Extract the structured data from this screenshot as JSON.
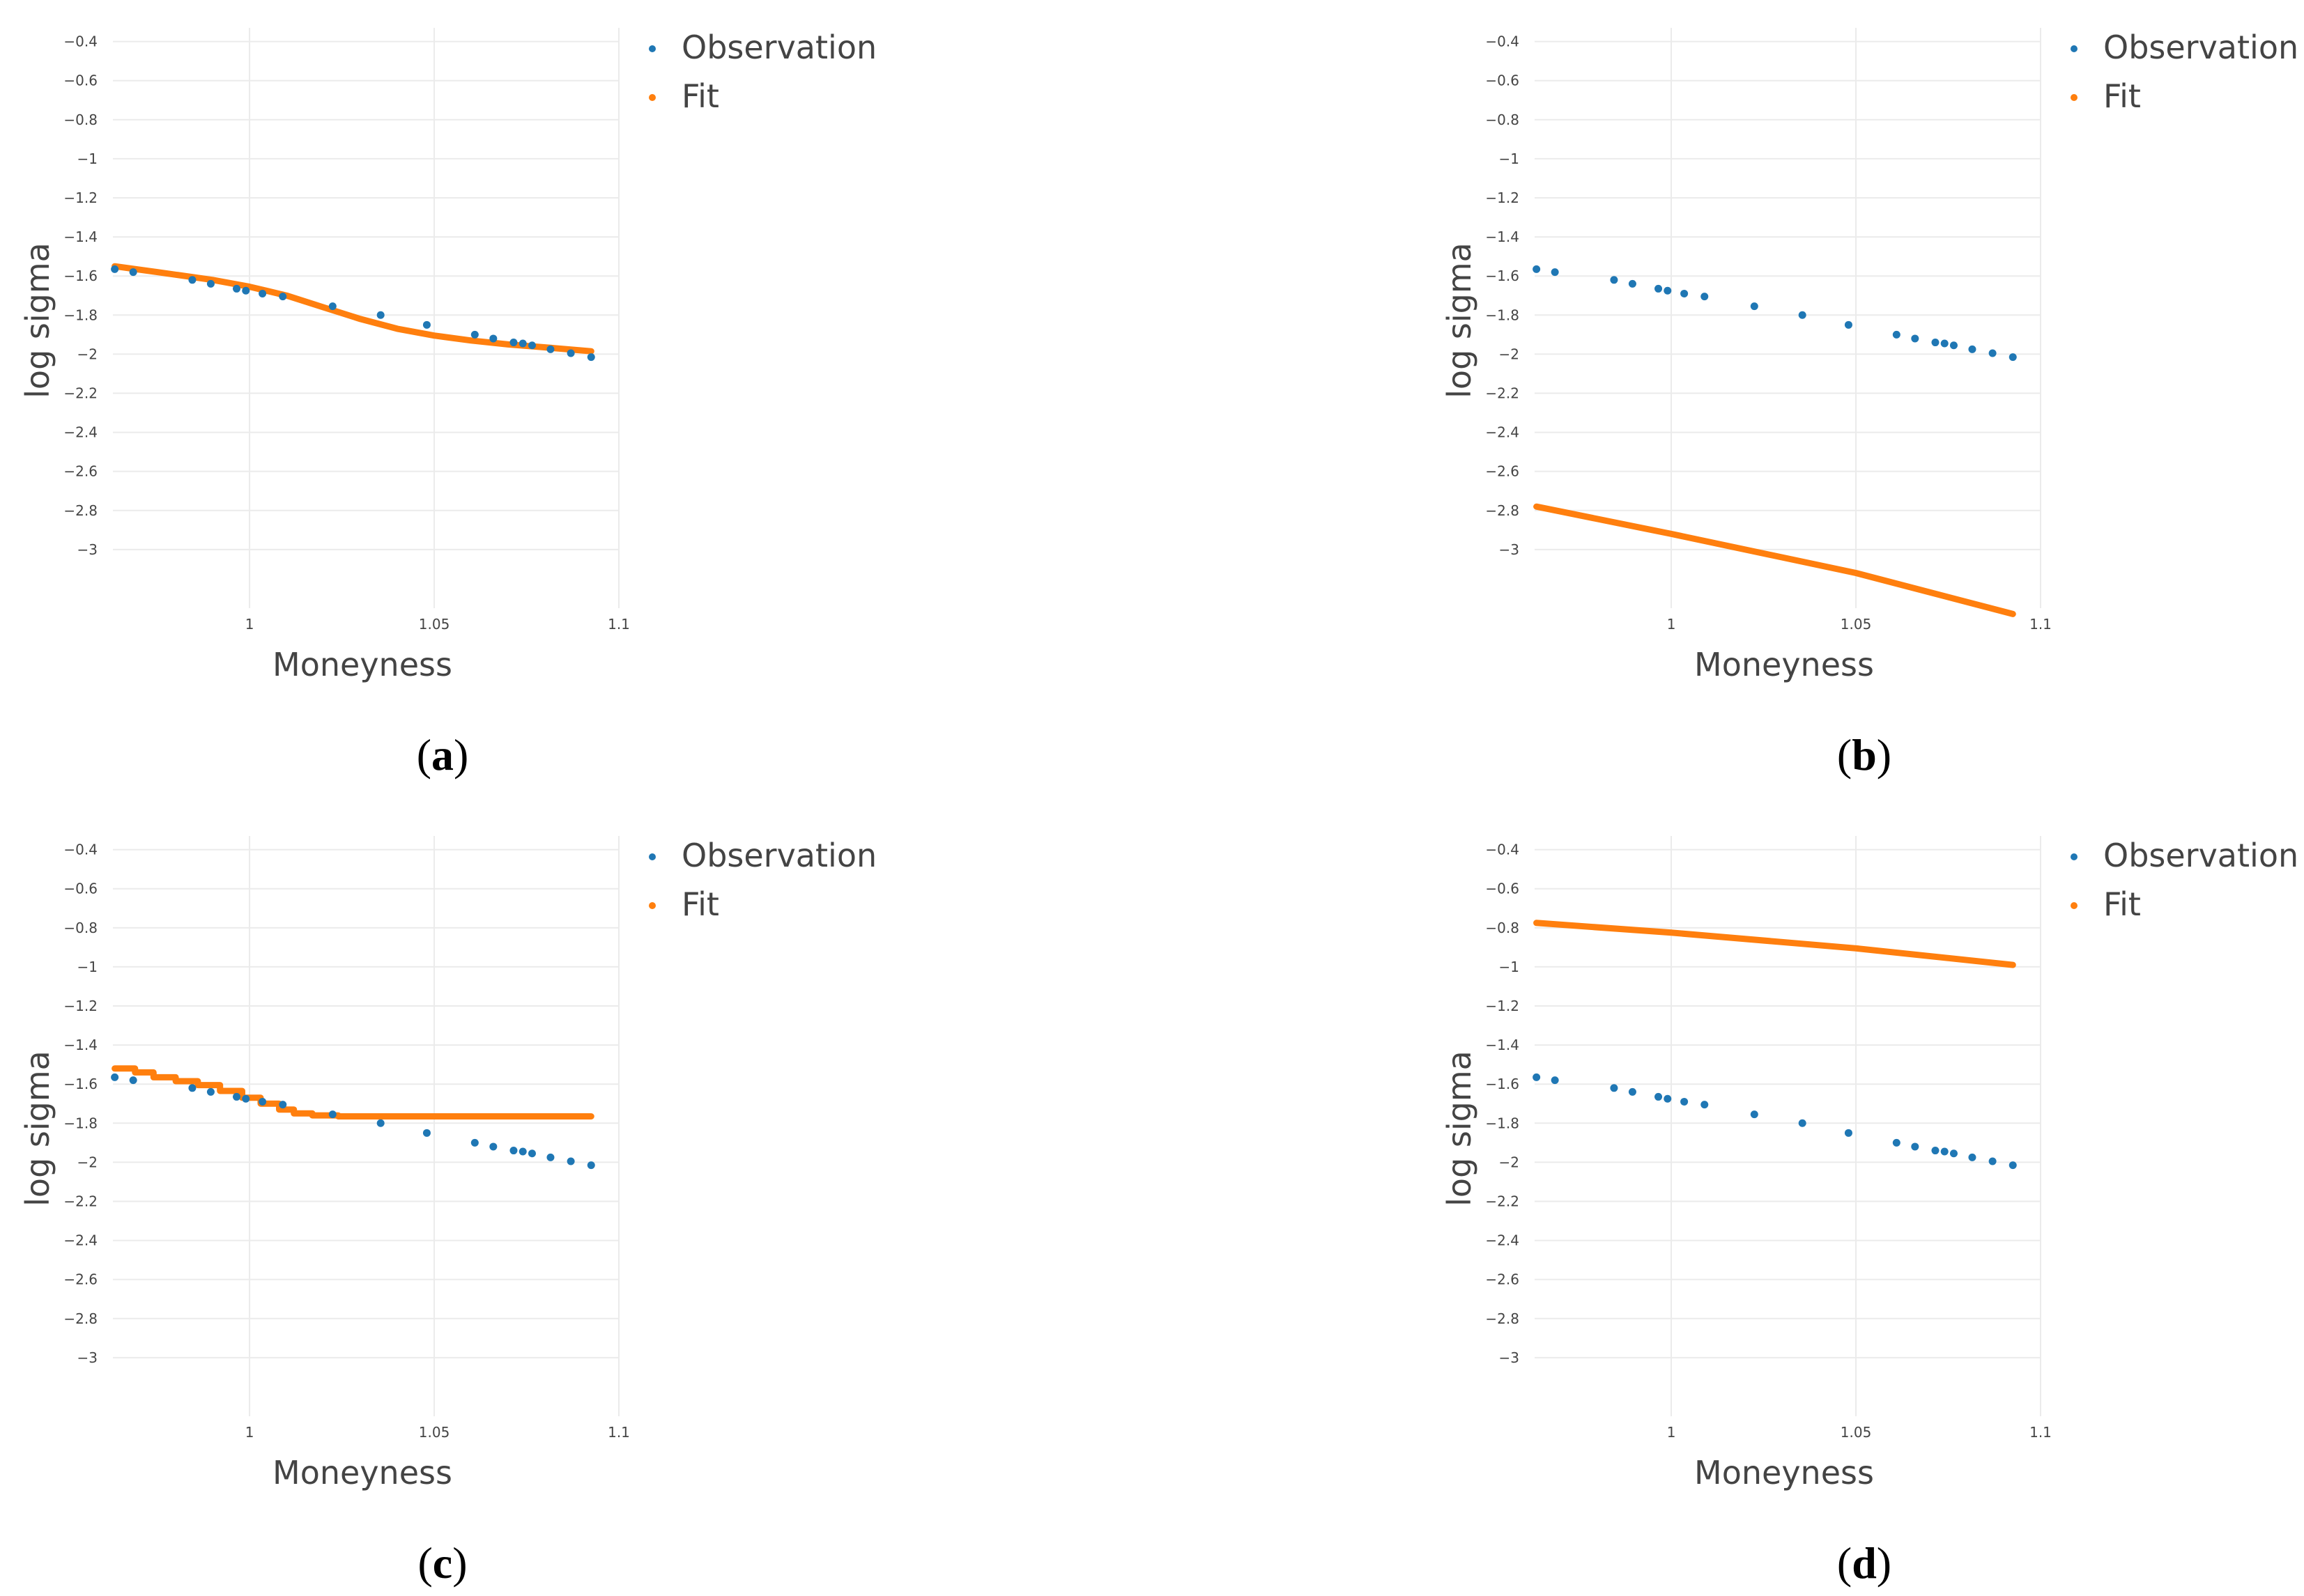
{
  "chart_data": [
    {
      "id": "a",
      "type": "scatter+line",
      "caption": "a",
      "xlabel": "Moneyness",
      "ylabel": "log sigma",
      "xlim": [
        0.963,
        1.1
      ],
      "ylim": [
        -3.3,
        -0.33
      ],
      "x_ticks": [
        1,
        1.05,
        1.1
      ],
      "x_tick_labels": [
        "1",
        "1.05",
        "1.1"
      ],
      "y_ticks": [
        -0.4,
        -0.6,
        -0.8,
        -1,
        -1.2,
        -1.4,
        -1.6,
        -1.8,
        -2,
        -2.2,
        -2.4,
        -2.6,
        -2.8,
        -3
      ],
      "y_tick_labels": [
        "−0.4",
        "−0.6",
        "−0.8",
        "−1",
        "−1.2",
        "−1.4",
        "−1.6",
        "−1.8",
        "−2",
        "−2.2",
        "−2.4",
        "−2.6",
        "−2.8",
        "−3"
      ],
      "grid": true,
      "legend": [
        "Observation",
        "Fit"
      ],
      "legend_position": "top-right",
      "series": [
        {
          "name": "Observation",
          "color": "#1f77b4",
          "x": [
            0.9635,
            0.9685,
            0.9845,
            0.9895,
            0.9965,
            0.999,
            1.0035,
            1.009,
            1.0225,
            1.0355,
            1.048,
            1.061,
            1.066,
            1.0715,
            1.074,
            1.0765,
            1.0815,
            1.087,
            1.0925
          ],
          "y": [
            -1.565,
            -1.58,
            -1.62,
            -1.64,
            -1.665,
            -1.675,
            -1.69,
            -1.705,
            -1.755,
            -1.8,
            -1.85,
            -1.9,
            -1.92,
            -1.94,
            -1.945,
            -1.955,
            -1.975,
            -1.995,
            -2.015
          ]
        },
        {
          "name": "Fit",
          "color": "#ff7f0e",
          "x": [
            0.9635,
            0.975,
            0.99,
            1.0,
            1.01,
            1.02,
            1.03,
            1.04,
            1.05,
            1.06,
            1.07,
            1.08,
            1.0925
          ],
          "y": [
            -1.55,
            -1.58,
            -1.62,
            -1.655,
            -1.7,
            -1.76,
            -1.82,
            -1.87,
            -1.905,
            -1.93,
            -1.95,
            -1.965,
            -1.985
          ]
        }
      ]
    },
    {
      "id": "b",
      "type": "scatter+line",
      "caption": "b",
      "xlabel": "Moneyness",
      "ylabel": "log sigma",
      "xlim": [
        0.963,
        1.1
      ],
      "ylim": [
        -3.3,
        -0.33
      ],
      "x_ticks": [
        1,
        1.05,
        1.1
      ],
      "x_tick_labels": [
        "1",
        "1.05",
        "1.1"
      ],
      "y_ticks": [
        -0.4,
        -0.6,
        -0.8,
        -1,
        -1.2,
        -1.4,
        -1.6,
        -1.8,
        -2,
        -2.2,
        -2.4,
        -2.6,
        -2.8,
        -3
      ],
      "y_tick_labels": [
        "−0.4",
        "−0.6",
        "−0.8",
        "−1",
        "−1.2",
        "−1.4",
        "−1.6",
        "−1.8",
        "−2",
        "−2.2",
        "−2.4",
        "−2.6",
        "−2.8",
        "−3"
      ],
      "grid": true,
      "legend": [
        "Observation",
        "Fit"
      ],
      "legend_position": "top-right",
      "series": [
        {
          "name": "Observation",
          "color": "#1f77b4",
          "x": [
            0.9635,
            0.9685,
            0.9845,
            0.9895,
            0.9965,
            0.999,
            1.0035,
            1.009,
            1.0225,
            1.0355,
            1.048,
            1.061,
            1.066,
            1.0715,
            1.074,
            1.0765,
            1.0815,
            1.087,
            1.0925
          ],
          "y": [
            -1.565,
            -1.58,
            -1.62,
            -1.64,
            -1.665,
            -1.675,
            -1.69,
            -1.705,
            -1.755,
            -1.8,
            -1.85,
            -1.9,
            -1.92,
            -1.94,
            -1.945,
            -1.955,
            -1.975,
            -1.995,
            -2.015
          ]
        },
        {
          "name": "Fit",
          "color": "#ff7f0e",
          "x": [
            0.9635,
            1.0,
            1.05,
            1.0925
          ],
          "y": [
            -2.78,
            -2.92,
            -3.12,
            -3.33
          ]
        }
      ]
    },
    {
      "id": "c",
      "type": "scatter+line",
      "caption": "c",
      "xlabel": "Moneyness",
      "ylabel": "log sigma",
      "xlim": [
        0.963,
        1.1
      ],
      "ylim": [
        -3.3,
        -0.33
      ],
      "x_ticks": [
        1,
        1.05,
        1.1
      ],
      "x_tick_labels": [
        "1",
        "1.05",
        "1.1"
      ],
      "y_ticks": [
        -0.4,
        -0.6,
        -0.8,
        -1,
        -1.2,
        -1.4,
        -1.6,
        -1.8,
        -2,
        -2.2,
        -2.4,
        -2.6,
        -2.8,
        -3
      ],
      "y_tick_labels": [
        "−0.4",
        "−0.6",
        "−0.8",
        "−1",
        "−1.2",
        "−1.4",
        "−1.6",
        "−1.8",
        "−2",
        "−2.2",
        "−2.4",
        "−2.6",
        "−2.8",
        "−3"
      ],
      "grid": true,
      "legend": [
        "Observation",
        "Fit"
      ],
      "legend_position": "top-right",
      "series": [
        {
          "name": "Observation",
          "color": "#1f77b4",
          "x": [
            0.9635,
            0.9685,
            0.9845,
            0.9895,
            0.9965,
            0.999,
            1.0035,
            1.009,
            1.0225,
            1.0355,
            1.048,
            1.061,
            1.066,
            1.0715,
            1.074,
            1.0765,
            1.0815,
            1.087,
            1.0925
          ],
          "y": [
            -1.565,
            -1.58,
            -1.62,
            -1.64,
            -1.665,
            -1.675,
            -1.69,
            -1.705,
            -1.755,
            -1.8,
            -1.85,
            -1.9,
            -1.92,
            -1.94,
            -1.945,
            -1.955,
            -1.975,
            -1.995,
            -2.015
          ]
        },
        {
          "name": "Fit",
          "color": "#ff7f0e",
          "x": [
            0.9635,
            0.969,
            0.969,
            0.974,
            0.974,
            0.98,
            0.98,
            0.986,
            0.986,
            0.992,
            0.992,
            0.998,
            0.998,
            1.003,
            1.003,
            1.008,
            1.008,
            1.012,
            1.012,
            1.017,
            1.017,
            1.024,
            1.024,
            1.0925
          ],
          "y": [
            -1.52,
            -1.52,
            -1.54,
            -1.54,
            -1.565,
            -1.565,
            -1.585,
            -1.585,
            -1.605,
            -1.605,
            -1.635,
            -1.635,
            -1.67,
            -1.67,
            -1.7,
            -1.7,
            -1.73,
            -1.73,
            -1.75,
            -1.75,
            -1.76,
            -1.76,
            -1.765,
            -1.765
          ]
        }
      ]
    },
    {
      "id": "d",
      "type": "scatter+line",
      "caption": "d",
      "xlabel": "Moneyness",
      "ylabel": "log sigma",
      "xlim": [
        0.963,
        1.1
      ],
      "ylim": [
        -3.3,
        -0.33
      ],
      "x_ticks": [
        1,
        1.05,
        1.1
      ],
      "x_tick_labels": [
        "1",
        "1.05",
        "1.1"
      ],
      "y_ticks": [
        -0.4,
        -0.6,
        -0.8,
        -1,
        -1.2,
        -1.4,
        -1.6,
        -1.8,
        -2,
        -2.2,
        -2.4,
        -2.6,
        -2.8,
        -3
      ],
      "y_tick_labels": [
        "−0.4",
        "−0.6",
        "−0.8",
        "−1",
        "−1.2",
        "−1.4",
        "−1.6",
        "−1.8",
        "−2",
        "−2.2",
        "−2.4",
        "−2.6",
        "−2.8",
        "−3"
      ],
      "grid": true,
      "legend": [
        "Observation",
        "Fit"
      ],
      "legend_position": "top-right",
      "series": [
        {
          "name": "Observation",
          "color": "#1f77b4",
          "x": [
            0.9635,
            0.9685,
            0.9845,
            0.9895,
            0.9965,
            0.999,
            1.0035,
            1.009,
            1.0225,
            1.0355,
            1.048,
            1.061,
            1.066,
            1.0715,
            1.074,
            1.0765,
            1.0815,
            1.087,
            1.0925
          ],
          "y": [
            -1.565,
            -1.58,
            -1.62,
            -1.64,
            -1.665,
            -1.675,
            -1.69,
            -1.705,
            -1.755,
            -1.8,
            -1.85,
            -1.9,
            -1.92,
            -1.94,
            -1.945,
            -1.955,
            -1.975,
            -1.995,
            -2.015
          ]
        },
        {
          "name": "Fit",
          "color": "#ff7f0e",
          "x": [
            0.9635,
            1.0,
            1.05,
            1.0925
          ],
          "y": [
            -0.775,
            -0.825,
            -0.905,
            -0.99
          ]
        }
      ]
    }
  ]
}
